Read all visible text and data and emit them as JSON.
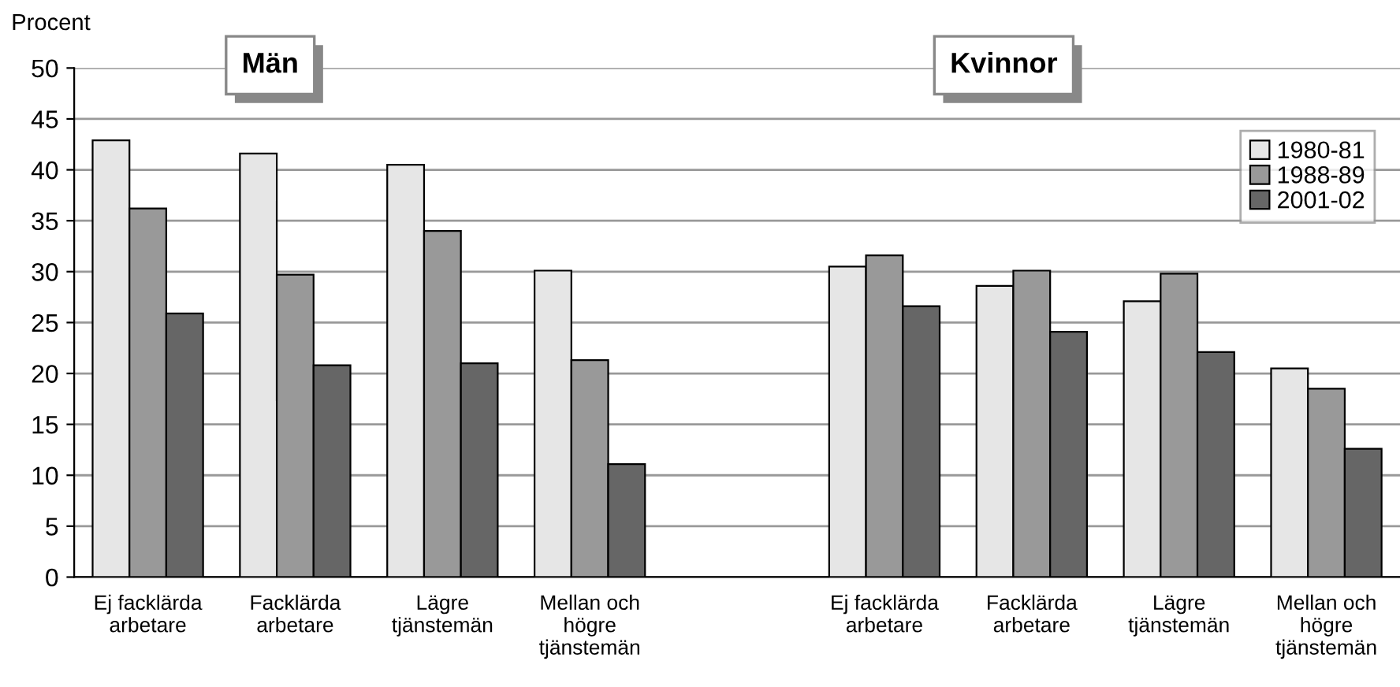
{
  "chart_data": {
    "type": "bar",
    "ylabel": "Procent",
    "categories": [
      "Ej facklärda\narbetare",
      "Facklärda\narbetare",
      "Lägre\ntjänstemän",
      "Mellan och\nhögre\ntjänstemän",
      null,
      "Ej facklärda\narbetare",
      "Facklärda\narbetare",
      "Lägre\ntjänstemän",
      "Mellan och\nhögre\ntjänstemän"
    ],
    "series": [
      {
        "name": "1980-81",
        "color": "#e6e6e6",
        "values": [
          42.9,
          41.6,
          40.5,
          30.1,
          null,
          30.5,
          28.6,
          27.1,
          20.5
        ]
      },
      {
        "name": "1988-89",
        "color": "#999999",
        "values": [
          36.2,
          29.7,
          34.0,
          21.3,
          null,
          31.6,
          30.1,
          29.8,
          18.5
        ]
      },
      {
        "name": "2001-02",
        "color": "#666666",
        "values": [
          25.9,
          20.8,
          21.0,
          11.1,
          null,
          26.6,
          24.1,
          22.1,
          12.6
        ]
      }
    ],
    "annotations": [
      "Män",
      "Kvinnor"
    ],
    "ylim": [
      0,
      50
    ],
    "yticks": [
      0,
      5,
      10,
      15,
      20,
      25,
      30,
      35,
      40,
      45,
      50
    ],
    "grid": "y",
    "legend": "top right"
  }
}
